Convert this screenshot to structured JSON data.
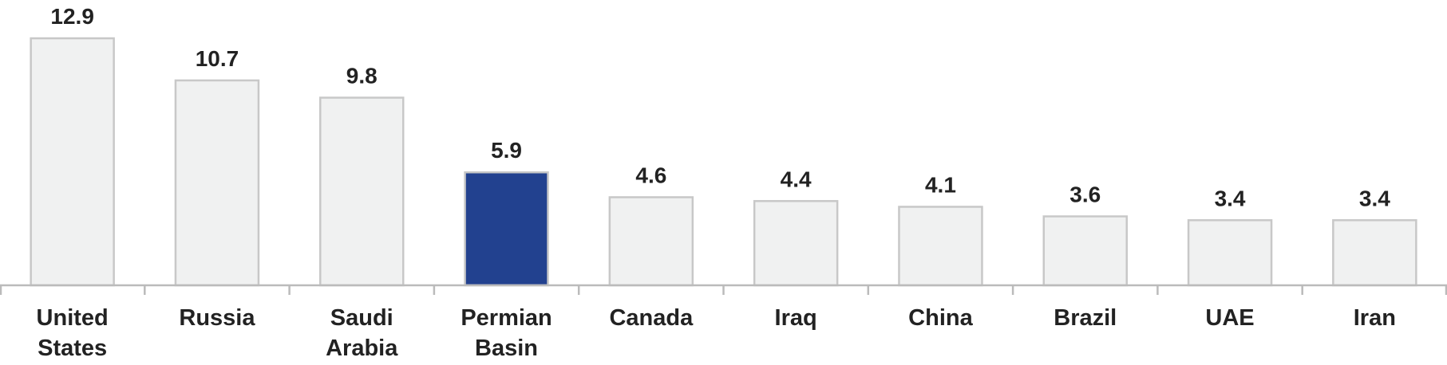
{
  "chart_data": {
    "type": "bar",
    "categories": [
      "United States",
      "Russia",
      "Saudi Arabia",
      "Permian Basin",
      "Canada",
      "Iraq",
      "China",
      "Brazil",
      "UAE",
      "Iran"
    ],
    "values": [
      12.9,
      10.7,
      9.8,
      5.9,
      4.6,
      4.4,
      4.1,
      3.6,
      3.4,
      3.4
    ],
    "colors": [
      "#f0f1f1",
      "#f0f1f1",
      "#f0f1f1",
      "#22418f",
      "#f0f1f1",
      "#f0f1f1",
      "#f0f1f1",
      "#f0f1f1",
      "#f0f1f1",
      "#f0f1f1"
    ],
    "ylim": [
      0,
      14.9
    ]
  }
}
